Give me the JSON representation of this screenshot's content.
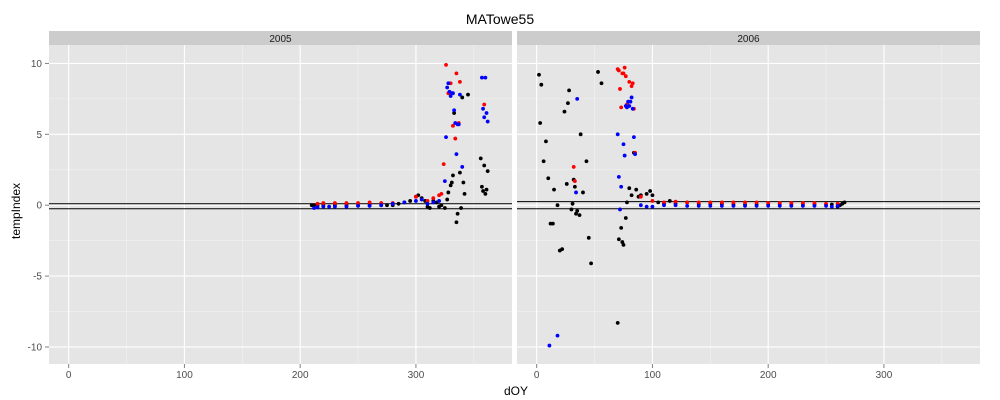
{
  "chart_data": {
    "type": "scatter",
    "title": "MATowe55",
    "xlabel": "dOY",
    "ylabel": "tempIndex",
    "xlim": [
      -17,
      383
    ],
    "ylim": [
      -11.2,
      11.3
    ],
    "x_ticks": [
      0,
      100,
      200,
      300
    ],
    "y_ticks": [
      -10,
      -5,
      0,
      5,
      10
    ],
    "grid": true,
    "legend": "none",
    "colors": {
      "panel": "#e5e5e5",
      "strip": "#cccccc",
      "grid": "#ffffff",
      "black": "#000000",
      "red": "#ff0000",
      "blue": "#0000ff"
    },
    "panels": [
      {
        "name": "2005",
        "hlines": [
          0.1,
          -0.25
        ],
        "series": [
          {
            "color": "black",
            "points": [
              [
                210,
                0
              ],
              [
                212,
                0
              ],
              [
                215,
                0
              ],
              [
                220,
                0
              ],
              [
                230,
                0
              ],
              [
                240,
                0
              ],
              [
                250,
                0
              ],
              [
                260,
                0
              ],
              [
                270,
                0
              ],
              [
                275,
                0
              ],
              [
                280,
                0
              ],
              [
                285,
                0.1
              ],
              [
                290,
                0.2
              ],
              [
                295,
                0.3
              ],
              [
                300,
                0.6
              ],
              [
                302,
                0.7
              ],
              [
                305,
                0.5
              ],
              [
                308,
                0.3
              ],
              [
                310,
                -0.1
              ],
              [
                312,
                -0.2
              ],
              [
                315,
                0.3
              ],
              [
                318,
                0.2
              ],
              [
                320,
                -0.1
              ],
              [
                322,
                0
              ],
              [
                325,
                -0.2
              ],
              [
                327,
                0.4
              ],
              [
                328,
                0.9
              ],
              [
                330,
                1.4
              ],
              [
                331,
                1.6
              ],
              [
                332,
                2.1
              ],
              [
                333,
                6.5
              ],
              [
                335,
                -1.2
              ],
              [
                336,
                -0.6
              ],
              [
                338,
                2.3
              ],
              [
                339,
                -0.2
              ],
              [
                340,
                7.6
              ],
              [
                341,
                1.6
              ],
              [
                342,
                0.8
              ],
              [
                345,
                7.8
              ],
              [
                356,
                3.3
              ],
              [
                357,
                1.3
              ],
              [
                358,
                1.0
              ],
              [
                359,
                2.8
              ],
              [
                360,
                0.8
              ],
              [
                361,
                1.1
              ],
              [
                362,
                2.4
              ]
            ]
          },
          {
            "color": "red",
            "points": [
              [
                215,
                0.1
              ],
              [
                220,
                0.15
              ],
              [
                230,
                0.15
              ],
              [
                240,
                0.15
              ],
              [
                250,
                0.15
              ],
              [
                260,
                0.2
              ],
              [
                270,
                0.15
              ],
              [
                280,
                0.15
              ],
              [
                300,
                0.6
              ],
              [
                310,
                0.3
              ],
              [
                315,
                0.5
              ],
              [
                320,
                0.7
              ],
              [
                322,
                0.8
              ],
              [
                324,
                2.9
              ],
              [
                326,
                9.9
              ],
              [
                328,
                7.9
              ],
              [
                330,
                8.6
              ],
              [
                332,
                5.6
              ],
              [
                334,
                4.7
              ],
              [
                335,
                9.3
              ],
              [
                337,
                5.8
              ],
              [
                338,
                8.7
              ],
              [
                359,
                7.1
              ]
            ]
          },
          {
            "color": "blue",
            "points": [
              [
                212,
                -0.2
              ],
              [
                215,
                -0.15
              ],
              [
                220,
                -0.1
              ],
              [
                225,
                -0.1
              ],
              [
                230,
                -0.1
              ],
              [
                240,
                -0.1
              ],
              [
                250,
                -0.05
              ],
              [
                260,
                -0.05
              ],
              [
                270,
                0
              ],
              [
                280,
                0.1
              ],
              [
                290,
                0.2
              ],
              [
                300,
                0.3
              ],
              [
                305,
                0.4
              ],
              [
                310,
                0.1
              ],
              [
                315,
                0.2
              ],
              [
                320,
                0.3
              ],
              [
                325,
                1.7
              ],
              [
                326,
                4.8
              ],
              [
                327,
                8.3
              ],
              [
                328,
                8.6
              ],
              [
                329,
                8.0
              ],
              [
                330,
                7.7
              ],
              [
                331,
                7.9
              ],
              [
                332,
                7.9
              ],
              [
                333,
                6.7
              ],
              [
                334,
                5.8
              ],
              [
                335,
                3.6
              ],
              [
                336,
                5.7
              ],
              [
                337,
                5.7
              ],
              [
                338,
                7.8
              ],
              [
                340,
                2.7
              ],
              [
                357,
                9.0
              ],
              [
                358,
                6.8
              ],
              [
                359,
                6.2
              ],
              [
                360,
                9.0
              ],
              [
                361,
                6.5
              ],
              [
                362,
                5.9
              ]
            ]
          }
        ]
      },
      {
        "name": "2006",
        "hlines": [
          0.25,
          -0.25
        ],
        "series": [
          {
            "color": "black",
            "points": [
              [
                2,
                9.2
              ],
              [
                3,
                5.8
              ],
              [
                4,
                8.5
              ],
              [
                6,
                3.1
              ],
              [
                8,
                4.5
              ],
              [
                10,
                1.9
              ],
              [
                12,
                -1.3
              ],
              [
                14,
                -1.3
              ],
              [
                15,
                1.1
              ],
              [
                18,
                0
              ],
              [
                20,
                -3.2
              ],
              [
                22,
                -3.1
              ],
              [
                24,
                6.6
              ],
              [
                26,
                1.5
              ],
              [
                27,
                7.2
              ],
              [
                28,
                8.1
              ],
              [
                30,
                -0.3
              ],
              [
                31,
                0.1
              ],
              [
                32,
                1.8
              ],
              [
                33,
                1.3
              ],
              [
                34,
                -0.6
              ],
              [
                35,
                -0.4
              ],
              [
                37,
                -0.7
              ],
              [
                38,
                5.0
              ],
              [
                40,
                0.9
              ],
              [
                43,
                3.1
              ],
              [
                45,
                -2.3
              ],
              [
                47,
                -4.1
              ],
              [
                53,
                9.4
              ],
              [
                56,
                8.6
              ],
              [
                70,
                -8.3
              ],
              [
                71,
                -2.4
              ],
              [
                73,
                -1.6
              ],
              [
                74,
                -2.6
              ],
              [
                75,
                -2.8
              ],
              [
                77,
                -0.9
              ],
              [
                78,
                0.2
              ],
              [
                80,
                1.2
              ],
              [
                82,
                0.7
              ],
              [
                84,
                3.7
              ],
              [
                86,
                1.1
              ],
              [
                88,
                0.6
              ],
              [
                90,
                0.7
              ],
              [
                95,
                0.8
              ],
              [
                98,
                1.0
              ],
              [
                100,
                0.7
              ],
              [
                105,
                0.2
              ],
              [
                110,
                0.1
              ],
              [
                115,
                0.3
              ],
              [
                120,
                0.1
              ],
              [
                130,
                0.2
              ],
              [
                140,
                0.1
              ],
              [
                150,
                0.1
              ],
              [
                160,
                0.1
              ],
              [
                170,
                0.05
              ],
              [
                180,
                0.05
              ],
              [
                190,
                0.05
              ],
              [
                200,
                0.05
              ],
              [
                210,
                0.05
              ],
              [
                220,
                0.05
              ],
              [
                230,
                0.05
              ],
              [
                240,
                0.05
              ],
              [
                250,
                0.05
              ],
              [
                255,
                0.05
              ],
              [
                260,
                -0.1
              ],
              [
                262,
                0
              ],
              [
                264,
                0.1
              ],
              [
                266,
                0.2
              ]
            ]
          },
          {
            "color": "red",
            "points": [
              [
                32,
                2.7
              ],
              [
                33,
                1.7
              ],
              [
                70,
                9.6
              ],
              [
                71,
                9.5
              ],
              [
                72,
                8.2
              ],
              [
                73,
                6.9
              ],
              [
                74,
                9.3
              ],
              [
                75,
                9.3
              ],
              [
                76,
                9.7
              ],
              [
                77,
                9.1
              ],
              [
                78,
                7.1
              ],
              [
                80,
                8.7
              ],
              [
                82,
                8.4
              ],
              [
                83,
                8.6
              ],
              [
                84,
                6.8
              ],
              [
                85,
                3.7
              ],
              [
                90,
                0.6
              ],
              [
                100,
                0.3
              ],
              [
                110,
                0.2
              ],
              [
                120,
                0.25
              ],
              [
                130,
                0.2
              ],
              [
                140,
                0.2
              ],
              [
                150,
                0.2
              ],
              [
                160,
                0.2
              ],
              [
                170,
                0.2
              ],
              [
                180,
                0.2
              ],
              [
                190,
                0.2
              ],
              [
                200,
                0.15
              ],
              [
                210,
                0.15
              ],
              [
                220,
                0.15
              ],
              [
                230,
                0.15
              ],
              [
                240,
                0.15
              ],
              [
                250,
                0.1
              ],
              [
                260,
                0.1
              ]
            ]
          },
          {
            "color": "blue",
            "points": [
              [
                11,
                -9.9
              ],
              [
                18,
                -9.2
              ],
              [
                35,
                7.5
              ],
              [
                34,
                0.9
              ],
              [
                70,
                5.0
              ],
              [
                71,
                2.0
              ],
              [
                72,
                -0.3
              ],
              [
                73,
                1.3
              ],
              [
                75,
                4.3
              ],
              [
                76,
                3.5
              ],
              [
                77,
                7.0
              ],
              [
                78,
                6.9
              ],
              [
                79,
                7.3
              ],
              [
                80,
                7.0
              ],
              [
                81,
                7.3
              ],
              [
                82,
                7.6
              ],
              [
                83,
                6.8
              ],
              [
                84,
                4.8
              ],
              [
                85,
                3.6
              ],
              [
                90,
                0
              ],
              [
                95,
                -0.1
              ],
              [
                100,
                -0.1
              ],
              [
                110,
                0
              ],
              [
                120,
                0
              ],
              [
                130,
                -0.05
              ],
              [
                140,
                -0.05
              ],
              [
                150,
                -0.05
              ],
              [
                160,
                -0.05
              ],
              [
                170,
                -0.05
              ],
              [
                180,
                -0.05
              ],
              [
                190,
                -0.05
              ],
              [
                200,
                -0.05
              ],
              [
                210,
                -0.05
              ],
              [
                220,
                -0.05
              ],
              [
                230,
                -0.05
              ],
              [
                240,
                -0.05
              ],
              [
                250,
                -0.05
              ],
              [
                255,
                -0.1
              ],
              [
                260,
                -0.05
              ]
            ]
          }
        ]
      }
    ]
  }
}
